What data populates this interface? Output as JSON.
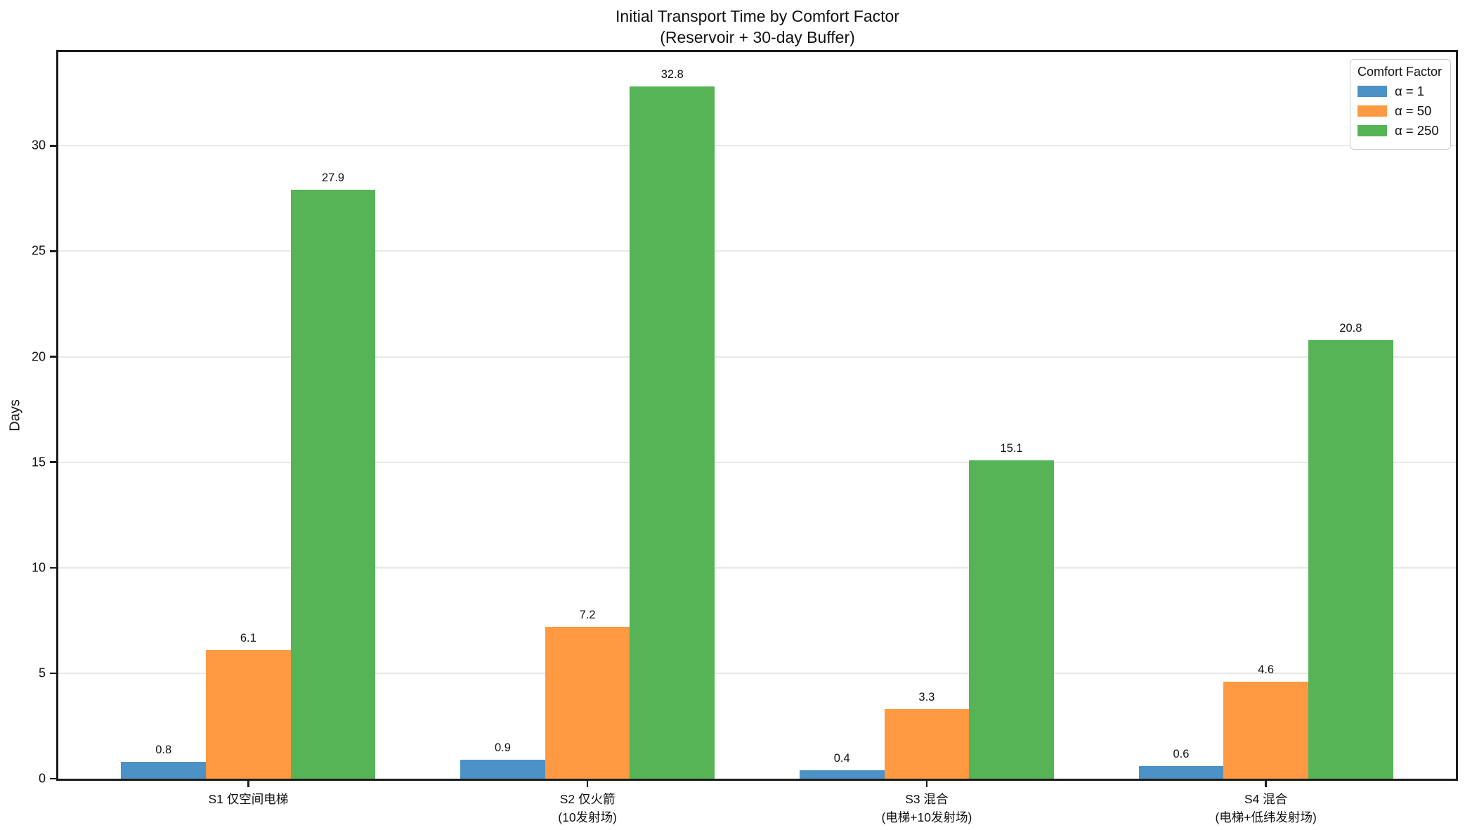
{
  "chart_data": {
    "type": "bar",
    "title": "Initial Transport Time by Comfort Factor",
    "subtitle": "(Reservoir + 30-day Buffer)",
    "ylabel": "Days",
    "xlabel": "",
    "ylim": [
      0,
      34.44
    ],
    "xlim": [
      -0.56,
      3.56
    ],
    "yticks": [
      0,
      5,
      10,
      15,
      20,
      25,
      30
    ],
    "grid": true,
    "bar_value_labels": true,
    "legend_title": "Comfort Factor",
    "legend_position": "upper right",
    "categories": [
      "S1 仅空间电梯",
      "S2 仅火箭\n(10发射场)",
      "S3 混合\n(电梯+10发射场)",
      "S4 混合\n(电梯+低纬发射场)"
    ],
    "series": [
      {
        "name": "α = 1",
        "color": "#4d92c6",
        "values": [
          0.8,
          0.9,
          0.4,
          0.6
        ]
      },
      {
        "name": "α = 50",
        "color": "#ff9a42",
        "values": [
          6.1,
          7.2,
          3.3,
          4.6
        ]
      },
      {
        "name": "α = 250",
        "color": "#56b356",
        "values": [
          27.9,
          32.8,
          15.1,
          20.8
        ]
      }
    ],
    "colors": {
      "axis_spine": "#1c1c1c",
      "gridline": "#e8e8e8",
      "legend_border": "#cccccc",
      "text": "#111111",
      "background": "#ffffff"
    }
  }
}
